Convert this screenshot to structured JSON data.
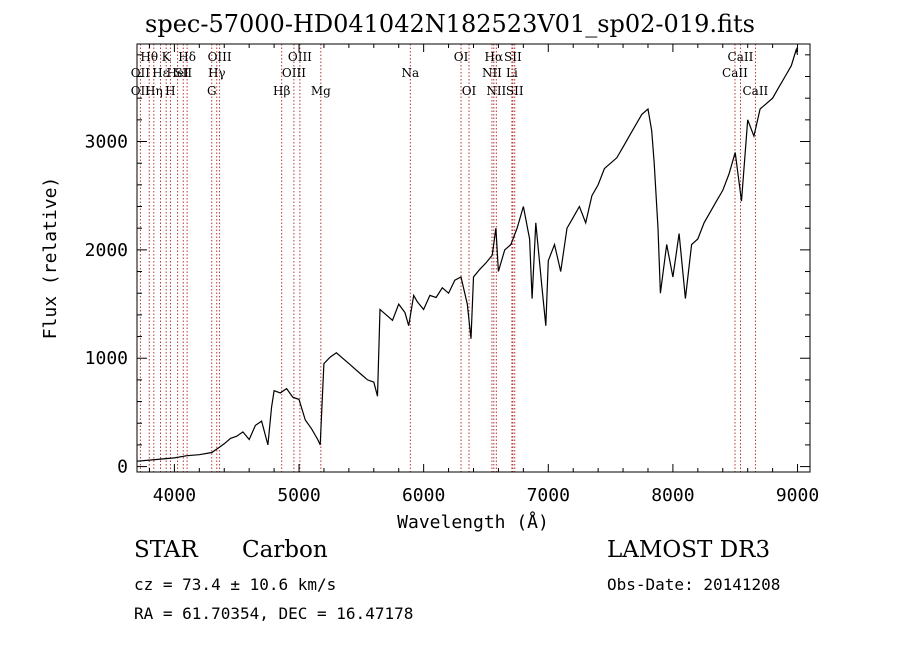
{
  "title": "spec-57000-HD041042N182523V01_sp02-019.fits",
  "footer": {
    "class": "STAR",
    "subclass": "Carbon",
    "survey": "LAMOST DR3",
    "cz": "cz = 73.4 ± 10.6 km/s",
    "obs_date": "Obs-Date: 20141208",
    "radec": "RA =  61.70354, DEC =  16.47178"
  },
  "colors": {
    "spectrum": "#000000",
    "line_marker": "#b02020",
    "axis": "#000000"
  },
  "chart_data": {
    "type": "line",
    "title": "spec-57000-HD041042N182523V01_sp02-019.fits",
    "xlabel": "Wavelength (Å)",
    "ylabel": "Flux (relative)",
    "xlim": [
      3700,
      9100
    ],
    "ylim": [
      -50,
      3900
    ],
    "xticks": [
      4000,
      5000,
      6000,
      7000,
      8000,
      9000
    ],
    "yticks": [
      0,
      1000,
      2000,
      3000
    ],
    "series": [
      {
        "name": "spectrum",
        "x": [
          3700,
          3800,
          3900,
          4000,
          4100,
          4200,
          4300,
          4350,
          4400,
          4450,
          4500,
          4550,
          4600,
          4650,
          4700,
          4750,
          4780,
          4800,
          4850,
          4900,
          4950,
          5000,
          5050,
          5100,
          5150,
          5170,
          5200,
          5250,
          5300,
          5350,
          5400,
          5450,
          5500,
          5550,
          5600,
          5630,
          5650,
          5700,
          5750,
          5800,
          5850,
          5880,
          5920,
          5950,
          6000,
          6050,
          6100,
          6150,
          6200,
          6250,
          6300,
          6350,
          6380,
          6400,
          6450,
          6500,
          6550,
          6580,
          6600,
          6650,
          6700,
          6750,
          6800,
          6850,
          6870,
          6900,
          6950,
          6980,
          7000,
          7050,
          7100,
          7150,
          7200,
          7250,
          7300,
          7350,
          7400,
          7450,
          7500,
          7550,
          7600,
          7650,
          7700,
          7750,
          7800,
          7830,
          7850,
          7880,
          7900,
          7950,
          8000,
          8050,
          8100,
          8150,
          8200,
          8250,
          8300,
          8350,
          8400,
          8450,
          8500,
          8550,
          8600,
          8650,
          8700,
          8750,
          8800,
          8850,
          8900,
          8950,
          8990,
          9000
        ],
        "y": [
          50,
          60,
          70,
          80,
          100,
          110,
          130,
          170,
          210,
          260,
          280,
          320,
          250,
          380,
          420,
          200,
          550,
          700,
          680,
          720,
          640,
          620,
          430,
          350,
          250,
          200,
          950,
          1010,
          1050,
          1000,
          950,
          900,
          850,
          800,
          780,
          650,
          1450,
          1400,
          1350,
          1500,
          1420,
          1300,
          1580,
          1520,
          1450,
          1580,
          1560,
          1650,
          1600,
          1720,
          1750,
          1500,
          1180,
          1750,
          1820,
          1880,
          1950,
          2200,
          1800,
          2000,
          2050,
          2200,
          2400,
          2100,
          1550,
          2250,
          1650,
          1300,
          1900,
          2050,
          1800,
          2200,
          2300,
          2400,
          2250,
          2500,
          2600,
          2750,
          2800,
          2850,
          2950,
          3050,
          3150,
          3250,
          3300,
          3100,
          2800,
          2200,
          1600,
          2050,
          1750,
          2150,
          1550,
          2050,
          2100,
          2250,
          2350,
          2450,
          2550,
          2700,
          2900,
          2450,
          3200,
          3050,
          3300,
          3350,
          3400,
          3500,
          3600,
          3700,
          3850,
          3800
        ]
      }
    ],
    "line_markers": [
      {
        "wavelength": 3798,
        "label": "Hθ",
        "row": 1
      },
      {
        "wavelength": 3727,
        "label": "OII",
        "row": 2
      },
      {
        "wavelength": 3727,
        "label": "OII",
        "row": 3
      },
      {
        "wavelength": 3889,
        "label": "Hε",
        "row": 2
      },
      {
        "wavelength": 3835,
        "label": "Hη",
        "row": 3
      },
      {
        "wavelength": 3934,
        "label": "K",
        "row": 1
      },
      {
        "wavelength": 3968,
        "label": "H",
        "row": 3
      },
      {
        "wavelength": 4026,
        "label": "HeI",
        "row": 2
      },
      {
        "wavelength": 4071,
        "label": "SII",
        "row": 2
      },
      {
        "wavelength": 4102,
        "label": "Hδ",
        "row": 1
      },
      {
        "wavelength": 4300,
        "label": "G",
        "row": 3
      },
      {
        "wavelength": 4340,
        "label": "Hγ",
        "row": 2
      },
      {
        "wavelength": 4363,
        "label": "OIII",
        "row": 1
      },
      {
        "wavelength": 4861,
        "label": "Hβ",
        "row": 3
      },
      {
        "wavelength": 4959,
        "label": "OIII",
        "row": 2
      },
      {
        "wavelength": 5007,
        "label": "OIII",
        "row": 1
      },
      {
        "wavelength": 5175,
        "label": "Mg",
        "row": 3
      },
      {
        "wavelength": 5893,
        "label": "Na",
        "row": 2
      },
      {
        "wavelength": 6300,
        "label": "OI",
        "row": 1
      },
      {
        "wavelength": 6364,
        "label": "OI",
        "row": 3
      },
      {
        "wavelength": 6548,
        "label": "NII",
        "row": 2
      },
      {
        "wavelength": 6563,
        "label": "Hα",
        "row": 1
      },
      {
        "wavelength": 6583,
        "label": "NII",
        "row": 3
      },
      {
        "wavelength": 6708,
        "label": "Li",
        "row": 2
      },
      {
        "wavelength": 6716,
        "label": "SII",
        "row": 1
      },
      {
        "wavelength": 6731,
        "label": "SII",
        "row": 3
      },
      {
        "wavelength": 8498,
        "label": "CaII",
        "row": 2
      },
      {
        "wavelength": 8542,
        "label": "CaII",
        "row": 1
      },
      {
        "wavelength": 8662,
        "label": "CaII",
        "row": 3
      }
    ]
  }
}
